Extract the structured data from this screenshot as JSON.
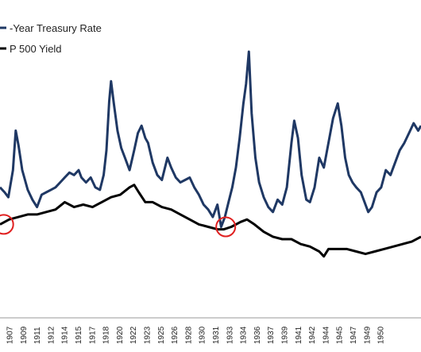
{
  "chart_data": {
    "type": "line",
    "title": "",
    "xlabel": "",
    "ylabel": "",
    "grid": false,
    "legend_position": "top-left",
    "x_tick_labels": [
      "1907",
      "1909",
      "1911",
      "1912",
      "1914",
      "1915",
      "1917",
      "1918",
      "1920",
      "1922",
      "1923",
      "1925",
      "1926",
      "1928",
      "1930",
      "1931",
      "1933",
      "1934",
      "1936",
      "1937",
      "1939",
      "1941",
      "1942",
      "1944",
      "1945",
      "1947",
      "1949",
      "1950"
    ],
    "series": [
      {
        "name": "-Year Treasury Rate",
        "color": "#1f3864",
        "points": [
          [
            1905.5,
            0.4
          ],
          [
            1906.0,
            0.38
          ],
          [
            1906.4,
            0.36
          ],
          [
            1906.9,
            0.47
          ],
          [
            1907.2,
            0.63
          ],
          [
            1907.5,
            0.57
          ],
          [
            1907.9,
            0.47
          ],
          [
            1908.5,
            0.39
          ],
          [
            1909.0,
            0.35
          ],
          [
            1909.5,
            0.32
          ],
          [
            1910.0,
            0.37
          ],
          [
            1910.5,
            0.38
          ],
          [
            1911.0,
            0.39
          ],
          [
            1911.5,
            0.4
          ],
          [
            1912.0,
            0.42
          ],
          [
            1912.5,
            0.44
          ],
          [
            1913.0,
            0.46
          ],
          [
            1913.5,
            0.45
          ],
          [
            1914.0,
            0.47
          ],
          [
            1914.3,
            0.44
          ],
          [
            1914.8,
            0.42
          ],
          [
            1915.3,
            0.44
          ],
          [
            1915.8,
            0.4
          ],
          [
            1916.3,
            0.39
          ],
          [
            1916.7,
            0.45
          ],
          [
            1917.0,
            0.55
          ],
          [
            1917.3,
            0.75
          ],
          [
            1917.5,
            0.83
          ],
          [
            1917.8,
            0.74
          ],
          [
            1918.2,
            0.63
          ],
          [
            1918.6,
            0.56
          ],
          [
            1919.0,
            0.52
          ],
          [
            1919.5,
            0.47
          ],
          [
            1920.0,
            0.55
          ],
          [
            1920.4,
            0.62
          ],
          [
            1920.8,
            0.65
          ],
          [
            1921.2,
            0.6
          ],
          [
            1921.5,
            0.58
          ],
          [
            1922.0,
            0.5
          ],
          [
            1922.5,
            0.45
          ],
          [
            1923.0,
            0.43
          ],
          [
            1923.6,
            0.52
          ],
          [
            1924.0,
            0.48
          ],
          [
            1924.5,
            0.44
          ],
          [
            1925.0,
            0.42
          ],
          [
            1925.5,
            0.43
          ],
          [
            1926.0,
            0.44
          ],
          [
            1926.5,
            0.4
          ],
          [
            1927.0,
            0.37
          ],
          [
            1927.5,
            0.33
          ],
          [
            1928.0,
            0.31
          ],
          [
            1928.5,
            0.28
          ],
          [
            1929.0,
            0.33
          ],
          [
            1929.4,
            0.24
          ],
          [
            1929.8,
            0.28
          ],
          [
            1930.2,
            0.34
          ],
          [
            1930.6,
            0.4
          ],
          [
            1931.0,
            0.48
          ],
          [
            1931.4,
            0.6
          ],
          [
            1931.8,
            0.74
          ],
          [
            1932.1,
            0.82
          ],
          [
            1932.4,
            0.95
          ],
          [
            1932.7,
            0.7
          ],
          [
            1933.1,
            0.52
          ],
          [
            1933.5,
            0.42
          ],
          [
            1934.0,
            0.36
          ],
          [
            1934.5,
            0.32
          ],
          [
            1935.0,
            0.3
          ],
          [
            1935.5,
            0.35
          ],
          [
            1936.0,
            0.33
          ],
          [
            1936.5,
            0.4
          ],
          [
            1937.0,
            0.58
          ],
          [
            1937.3,
            0.67
          ],
          [
            1937.7,
            0.6
          ],
          [
            1938.1,
            0.45
          ],
          [
            1938.6,
            0.35
          ],
          [
            1939.0,
            0.34
          ],
          [
            1939.5,
            0.4
          ],
          [
            1940.0,
            0.52
          ],
          [
            1940.5,
            0.48
          ],
          [
            1941.0,
            0.58
          ],
          [
            1941.5,
            0.68
          ],
          [
            1942.0,
            0.74
          ],
          [
            1942.4,
            0.65
          ],
          [
            1942.8,
            0.52
          ],
          [
            1943.2,
            0.45
          ],
          [
            1943.6,
            0.42
          ],
          [
            1944.0,
            0.4
          ],
          [
            1944.5,
            0.38
          ],
          [
            1945.0,
            0.33
          ],
          [
            1945.3,
            0.3
          ],
          [
            1945.7,
            0.32
          ],
          [
            1946.2,
            0.38
          ],
          [
            1946.7,
            0.4
          ],
          [
            1947.2,
            0.47
          ],
          [
            1947.7,
            0.45
          ],
          [
            1948.2,
            0.5
          ],
          [
            1948.7,
            0.55
          ],
          [
            1949.2,
            0.58
          ],
          [
            1949.7,
            0.62
          ],
          [
            1950.2,
            0.66
          ],
          [
            1950.7,
            0.63
          ],
          [
            1951.0,
            0.65
          ]
        ]
      },
      {
        "name": "P 500 Yield",
        "color": "#000000",
        "points": [
          [
            1905.5,
            0.25
          ],
          [
            1906.5,
            0.27
          ],
          [
            1907.5,
            0.28
          ],
          [
            1908.5,
            0.29
          ],
          [
            1909.5,
            0.29
          ],
          [
            1910.5,
            0.3
          ],
          [
            1911.5,
            0.31
          ],
          [
            1912.5,
            0.34
          ],
          [
            1913.5,
            0.32
          ],
          [
            1914.5,
            0.33
          ],
          [
            1915.5,
            0.32
          ],
          [
            1916.5,
            0.34
          ],
          [
            1917.5,
            0.36
          ],
          [
            1918.5,
            0.37
          ],
          [
            1919.5,
            0.4
          ],
          [
            1920.0,
            0.41
          ],
          [
            1920.5,
            0.38
          ],
          [
            1921.2,
            0.34
          ],
          [
            1922.0,
            0.34
          ],
          [
            1923.0,
            0.32
          ],
          [
            1924.0,
            0.31
          ],
          [
            1925.0,
            0.29
          ],
          [
            1926.0,
            0.27
          ],
          [
            1927.0,
            0.25
          ],
          [
            1928.0,
            0.24
          ],
          [
            1929.0,
            0.23
          ],
          [
            1929.7,
            0.23
          ],
          [
            1930.5,
            0.24
          ],
          [
            1931.5,
            0.26
          ],
          [
            1932.2,
            0.27
          ],
          [
            1933.0,
            0.25
          ],
          [
            1934.0,
            0.22
          ],
          [
            1935.0,
            0.2
          ],
          [
            1936.0,
            0.19
          ],
          [
            1937.0,
            0.19
          ],
          [
            1938.0,
            0.17
          ],
          [
            1939.0,
            0.16
          ],
          [
            1940.0,
            0.14
          ],
          [
            1940.5,
            0.12
          ],
          [
            1941.0,
            0.15
          ],
          [
            1942.0,
            0.15
          ],
          [
            1943.0,
            0.15
          ],
          [
            1944.0,
            0.14
          ],
          [
            1945.0,
            0.13
          ],
          [
            1946.0,
            0.14
          ],
          [
            1947.0,
            0.15
          ],
          [
            1948.0,
            0.16
          ],
          [
            1949.0,
            0.17
          ],
          [
            1950.0,
            0.18
          ],
          [
            1951.0,
            0.2
          ]
        ]
      }
    ],
    "annotations": [
      {
        "type": "circle",
        "x": 1905.9,
        "y": 0.25,
        "color": "#e02020"
      },
      {
        "type": "circle",
        "x": 1929.9,
        "y": 0.24,
        "color": "#e02020"
      }
    ]
  }
}
